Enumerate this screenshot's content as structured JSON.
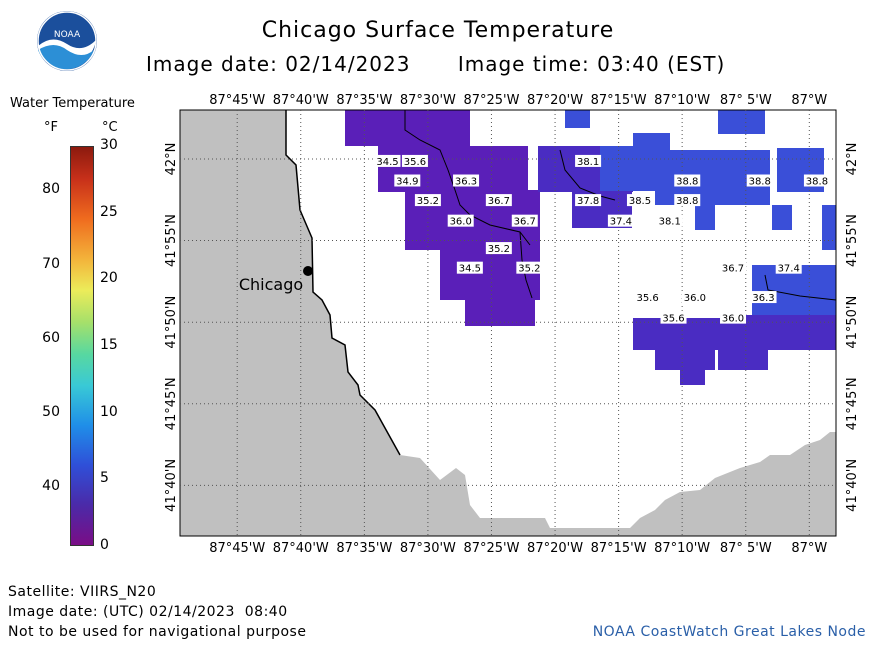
{
  "header": {
    "title": "Chicago Surface Temperature",
    "image_date": "Image date: 02/14/2023",
    "image_time": "Image time: 03:40 (EST)"
  },
  "logo": {
    "text": "NOAA"
  },
  "legend": {
    "title": "Water Temperature",
    "unit_f": "°F",
    "unit_c": "°C",
    "ticks_f": [
      "80",
      "70",
      "60",
      "50",
      "40"
    ],
    "ticks_c": [
      "30",
      "25",
      "20",
      "15",
      "10",
      "5",
      "0"
    ]
  },
  "map": {
    "lon_labels": [
      "87°45'W",
      "87°40'W",
      "87°35'W",
      "87°30'W",
      "87°25'W",
      "87°20'W",
      "87°15'W",
      "87°10'W",
      "87° 5'W",
      "87°W"
    ],
    "lat_labels": [
      "42°N",
      "41°55'N",
      "41°50'N",
      "41°45'N",
      "41°40'N"
    ],
    "city_label": "Chicago",
    "land_color": "#c0c0c0",
    "temp_labels": [
      {
        "t": "34.5",
        "lon": -87.553,
        "lat": 41.998
      },
      {
        "t": "35.6",
        "lon": -87.517,
        "lat": 41.998
      },
      {
        "t": "38.1",
        "lon": -87.29,
        "lat": 41.998
      },
      {
        "t": "34.9",
        "lon": -87.527,
        "lat": 41.978
      },
      {
        "t": "36.3",
        "lon": -87.45,
        "lat": 41.978
      },
      {
        "t": "38.8",
        "lon": -87.16,
        "lat": 41.978
      },
      {
        "t": "38.8",
        "lon": -87.065,
        "lat": 41.978
      },
      {
        "t": "38.8",
        "lon": -86.99,
        "lat": 41.978
      },
      {
        "t": "35.2",
        "lon": -87.5,
        "lat": 41.958
      },
      {
        "t": "36.7",
        "lon": -87.407,
        "lat": 41.958
      },
      {
        "t": "37.8",
        "lon": -87.29,
        "lat": 41.958
      },
      {
        "t": "38.5",
        "lon": -87.222,
        "lat": 41.958
      },
      {
        "t": "38.8",
        "lon": -87.16,
        "lat": 41.958
      },
      {
        "t": "36.0",
        "lon": -87.457,
        "lat": 41.937
      },
      {
        "t": "36.7",
        "lon": -87.373,
        "lat": 41.937
      },
      {
        "t": "37.4",
        "lon": -87.247,
        "lat": 41.937
      },
      {
        "t": "38.1",
        "lon": -87.183,
        "lat": 41.937
      },
      {
        "t": "35.2",
        "lon": -87.407,
        "lat": 41.909
      },
      {
        "t": "34.5",
        "lon": -87.445,
        "lat": 41.889
      },
      {
        "t": "35.2",
        "lon": -87.367,
        "lat": 41.889
      },
      {
        "t": "36.7",
        "lon": -87.1,
        "lat": 41.889
      },
      {
        "t": "37.4",
        "lon": -87.027,
        "lat": 41.889
      },
      {
        "t": "35.6",
        "lon": -87.212,
        "lat": 41.859
      },
      {
        "t": "36.0",
        "lon": -87.15,
        "lat": 41.859
      },
      {
        "t": "36.3",
        "lon": -87.06,
        "lat": 41.859
      },
      {
        "t": "35.6",
        "lon": -87.178,
        "lat": 41.838
      },
      {
        "t": "36.0",
        "lon": -87.1,
        "lat": 41.838
      }
    ]
  },
  "footer": {
    "satellite": "Satellite: VIIRS_N20",
    "utc_date": "Image date: (UTC) 02/14/2023  08:40",
    "disclaimer": "Not to be used for navigational purpose",
    "credit": "NOAA CoastWatch Great Lakes Node"
  }
}
